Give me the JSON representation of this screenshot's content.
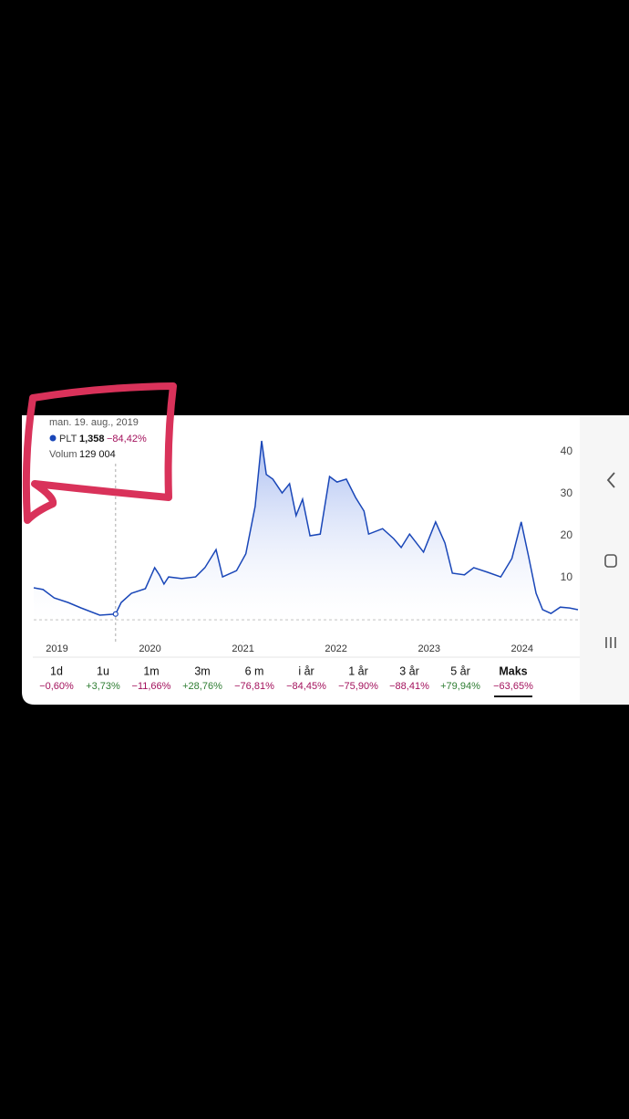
{
  "tooltip": {
    "date": "man. 19. aug., 2019",
    "ticker": "PLT",
    "price": "1,358",
    "change": "−84,42%",
    "volume_label": "Volum",
    "volume": "129 004"
  },
  "ranges": [
    {
      "label": "1d",
      "change": "−0,60%"
    },
    {
      "label": "1u",
      "change": "+3,73%"
    },
    {
      "label": "1m",
      "change": "−11,66%"
    },
    {
      "label": "3m",
      "change": "+28,76%"
    },
    {
      "label": "6 m",
      "change": "−76,81%"
    },
    {
      "label": "i år",
      "change": "−84,45%"
    },
    {
      "label": "1 år",
      "change": "−75,90%"
    },
    {
      "label": "3 år",
      "change": "−88,41%"
    },
    {
      "label": "5 år",
      "change": "+79,94%"
    },
    {
      "label": "Maks",
      "change": "−63,65%"
    }
  ],
  "chart_data": {
    "type": "line",
    "x": [
      2018.75,
      2018.85,
      2018.97,
      2019.12,
      2019.26,
      2019.46,
      2019.63,
      2019.69,
      2019.8,
      2019.95,
      2020.05,
      2020.1,
      2020.15,
      2020.2,
      2020.34,
      2020.49,
      2020.59,
      2020.71,
      2020.78,
      2020.93,
      2021.03,
      2021.13,
      2021.2,
      2021.25,
      2021.32,
      2021.42,
      2021.5,
      2021.57,
      2021.64,
      2021.72,
      2021.83,
      2021.93,
      2022.01,
      2022.11,
      2022.21,
      2022.3,
      2022.35,
      2022.5,
      2022.62,
      2022.7,
      2022.79,
      2022.94,
      2023.07,
      2023.17,
      2023.25,
      2023.38,
      2023.48,
      2023.63,
      2023.77,
      2023.89,
      2023.99,
      2024.07,
      2024.15,
      2024.22,
      2024.31,
      2024.41,
      2024.51,
      2024.6
    ],
    "series": [
      {
        "name": "PLT",
        "color": "#1a47b8",
        "values": [
          7.6,
          7.2,
          5.2,
          4.1,
          2.8,
          1.1,
          1.36,
          4.1,
          6.3,
          7.4,
          12.4,
          10.7,
          8.5,
          10.2,
          9.8,
          10.2,
          12.4,
          16.7,
          10.2,
          11.7,
          15.7,
          27,
          42.6,
          34.6,
          33.5,
          30.2,
          32.4,
          24.8,
          28.7,
          20,
          20.4,
          34.1,
          32.8,
          33.5,
          29.1,
          25.9,
          20.4,
          21.7,
          19.3,
          17.2,
          20.4,
          16.1,
          23.3,
          18.3,
          11.1,
          10.7,
          12.4,
          11.3,
          10.2,
          14.6,
          23.3,
          15,
          6.3,
          2.4,
          1.5,
          3,
          2.8,
          2.4
        ]
      }
    ],
    "xlim": [
      2018.75,
      2024.6
    ],
    "xticks": [
      2019,
      2020,
      2021,
      2022,
      2023,
      2024
    ],
    "ylim": [
      0,
      45
    ],
    "yticks": [
      10,
      20,
      30,
      40
    ]
  }
}
